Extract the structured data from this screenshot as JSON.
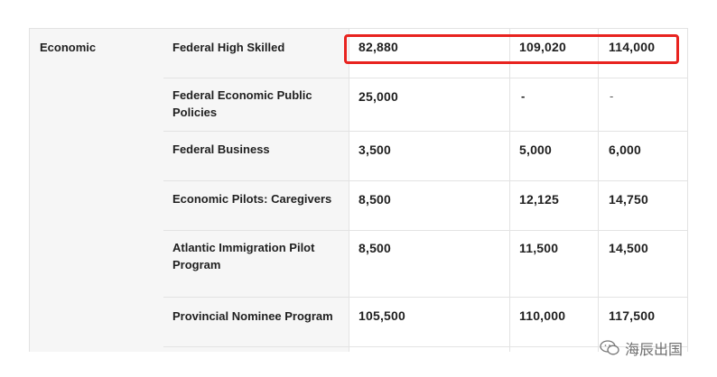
{
  "category": "Economic",
  "rows": [
    {
      "program": "Federal High Skilled",
      "y1": "82,880",
      "y2": "109,020",
      "y3": "114,000"
    },
    {
      "program": "Federal Economic Public Policies",
      "y1": "25,000",
      "y2": "-",
      "y3": "-"
    },
    {
      "program": "Federal Business",
      "y1": "3,500",
      "y2": "5,000",
      "y3": "6,000"
    },
    {
      "program": "Economic Pilots: Caregivers",
      "y1": "8,500",
      "y2": "12,125",
      "y3": "14,750"
    },
    {
      "program": "Atlantic Immigration Pilot Program",
      "y1": "8,500",
      "y2": "11,500",
      "y3": "14,500"
    },
    {
      "program": "Provincial Nominee Program",
      "y1": "105,500",
      "y2": "110,000",
      "y3": "117,500"
    }
  ],
  "highlight_color": "#e8231f",
  "watermark": {
    "text": "海辰出国",
    "icon": "wechat-icon"
  }
}
